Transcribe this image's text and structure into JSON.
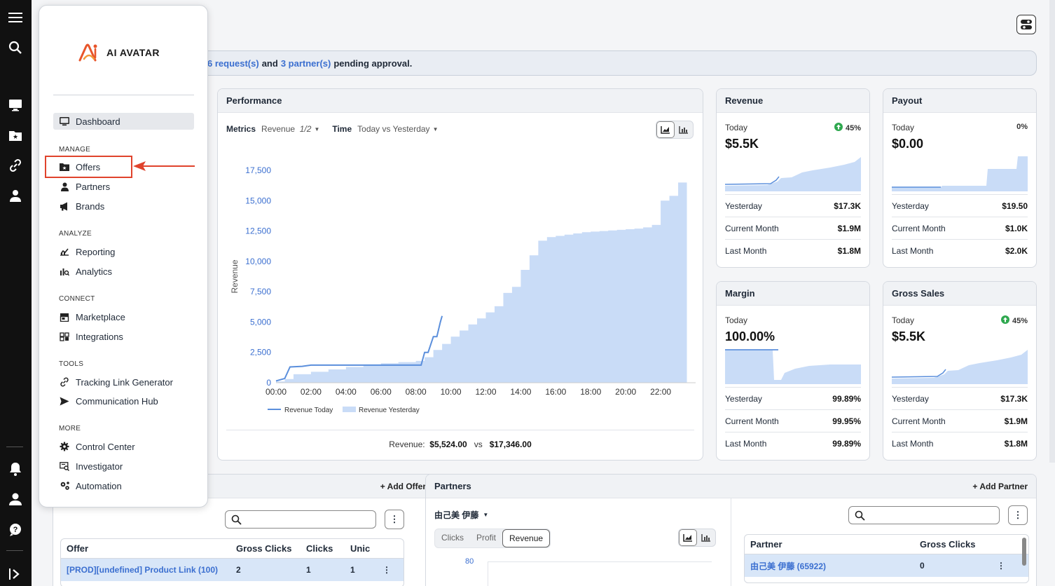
{
  "brand": {
    "name": "AI AVATAR"
  },
  "banner": {
    "pre": "",
    "requests": "6 request(s)",
    "and": "and",
    "partners": "3 partner(s)",
    "post": "pending approval."
  },
  "menu": {
    "dashboard": "Dashboard",
    "sections": {
      "manage": "MANAGE",
      "analyze": "ANALYZE",
      "connect": "CONNECT",
      "tools": "TOOLS",
      "more": "MORE"
    },
    "items": {
      "offers": "Offers",
      "partners": "Partners",
      "brands": "Brands",
      "reporting": "Reporting",
      "analytics": "Analytics",
      "marketplace": "Marketplace",
      "integrations": "Integrations",
      "tracking": "Tracking Link Generator",
      "communication": "Communication Hub",
      "control": "Control Center",
      "investigator": "Investigator",
      "automation": "Automation"
    }
  },
  "performance": {
    "title": "Performance",
    "metrics_label": "Metrics",
    "metrics_value": "Revenue",
    "metrics_count": "1/2",
    "time_label": "Time",
    "time_value": "Today vs Yesterday",
    "footer_label": "Revenue:",
    "footer_today": "$5,524.00",
    "footer_vs": "vs",
    "footer_yesterday": "$17,346.00"
  },
  "chart_data": {
    "type": "area",
    "ylabel": "Revenue",
    "xlabel": "",
    "ylim": [
      0,
      17500
    ],
    "yticks": [
      "0",
      "2,500",
      "5,000",
      "7,500",
      "10,000",
      "12,500",
      "15,000",
      "17,500"
    ],
    "xticks": [
      "00:00",
      "02:00",
      "04:00",
      "06:00",
      "08:00",
      "10:00",
      "12:00",
      "14:00",
      "16:00",
      "18:00",
      "20:00",
      "22:00"
    ],
    "legend": [
      "Revenue Today",
      "Revenue Yesterday"
    ],
    "legend_position": "bottom",
    "series": [
      {
        "name": "Revenue Today",
        "kind": "line",
        "color": "#5b8fdc",
        "x": [
          0,
          0.5,
          0.8,
          1.5,
          2,
          3,
          4,
          5,
          6,
          7,
          8.3,
          8.5,
          8.7,
          9,
          9.2,
          9.4,
          9.5
        ],
        "y": [
          150,
          350,
          1300,
          1350,
          1450,
          1450,
          1450,
          1450,
          1450,
          1450,
          1450,
          2500,
          2500,
          3800,
          3800,
          5000,
          5500
        ]
      },
      {
        "name": "Revenue Yesterday",
        "kind": "area",
        "color": "#c9dcf7",
        "x": [
          0,
          0.5,
          1,
          2,
          3,
          4,
          5,
          6,
          7,
          8,
          8.5,
          9,
          9.5,
          10,
          10.5,
          11,
          11.5,
          12,
          12.5,
          13,
          13.5,
          14,
          14.5,
          15,
          15.5,
          16,
          16.5,
          17,
          17.5,
          18,
          18.5,
          19,
          19.5,
          20,
          20.5,
          21,
          21.5,
          22,
          22.5,
          23,
          23.5
        ],
        "y": [
          100,
          300,
          700,
          900,
          1100,
          1300,
          1500,
          1600,
          1700,
          1800,
          2100,
          2700,
          3200,
          3800,
          4300,
          4800,
          5300,
          5800,
          6300,
          7400,
          7900,
          9300,
          10500,
          11700,
          12000,
          12100,
          12200,
          12300,
          12400,
          12450,
          12500,
          12550,
          12600,
          12650,
          12700,
          12800,
          13000,
          15000,
          15400,
          16500,
          17346
        ]
      }
    ]
  },
  "stats": [
    {
      "title": "Revenue",
      "today": "Today",
      "pct": "45%",
      "up": true,
      "value": "$5.5K",
      "rows": [
        {
          "l": "Yesterday",
          "v": "$17.3K"
        },
        {
          "l": "Current Month",
          "v": "$1.9M"
        },
        {
          "l": "Last Month",
          "v": "$1.8M"
        }
      ]
    },
    {
      "title": "Payout",
      "today": "Today",
      "pct": "0%",
      "up": false,
      "value": "$0.00",
      "rows": [
        {
          "l": "Yesterday",
          "v": "$19.50"
        },
        {
          "l": "Current Month",
          "v": "$1.0K"
        },
        {
          "l": "Last Month",
          "v": "$2.0K"
        }
      ]
    },
    {
      "title": "Margin",
      "today": "Today",
      "pct": "",
      "up": false,
      "value": "100.00%",
      "rows": [
        {
          "l": "Yesterday",
          "v": "99.89%"
        },
        {
          "l": "Current Month",
          "v": "99.95%"
        },
        {
          "l": "Last Month",
          "v": "99.89%"
        }
      ]
    },
    {
      "title": "Gross Sales",
      "today": "Today",
      "pct": "45%",
      "up": true,
      "value": "$5.5K",
      "rows": [
        {
          "l": "Yesterday",
          "v": "$17.3K"
        },
        {
          "l": "Current Month",
          "v": "$1.9M"
        },
        {
          "l": "Last Month",
          "v": "$1.8M"
        }
      ]
    }
  ],
  "offers": {
    "add": "+ Add Offer",
    "cols": [
      "Offer",
      "Gross Clicks",
      "Clicks",
      "Unic"
    ],
    "row": [
      "[PROD][undefined] Product Link (100)",
      "2",
      "1",
      "1"
    ]
  },
  "partners": {
    "title": "Partners",
    "add": "+ Add Partner",
    "selected": "由己美 伊藤",
    "tabs": [
      "Clicks",
      "Profit",
      "Revenue"
    ],
    "active_tab": "Revenue",
    "ytick": "80",
    "cols": [
      "Partner",
      "Gross Clicks"
    ],
    "row": [
      "由己美 伊藤 (65922)",
      "0"
    ]
  }
}
